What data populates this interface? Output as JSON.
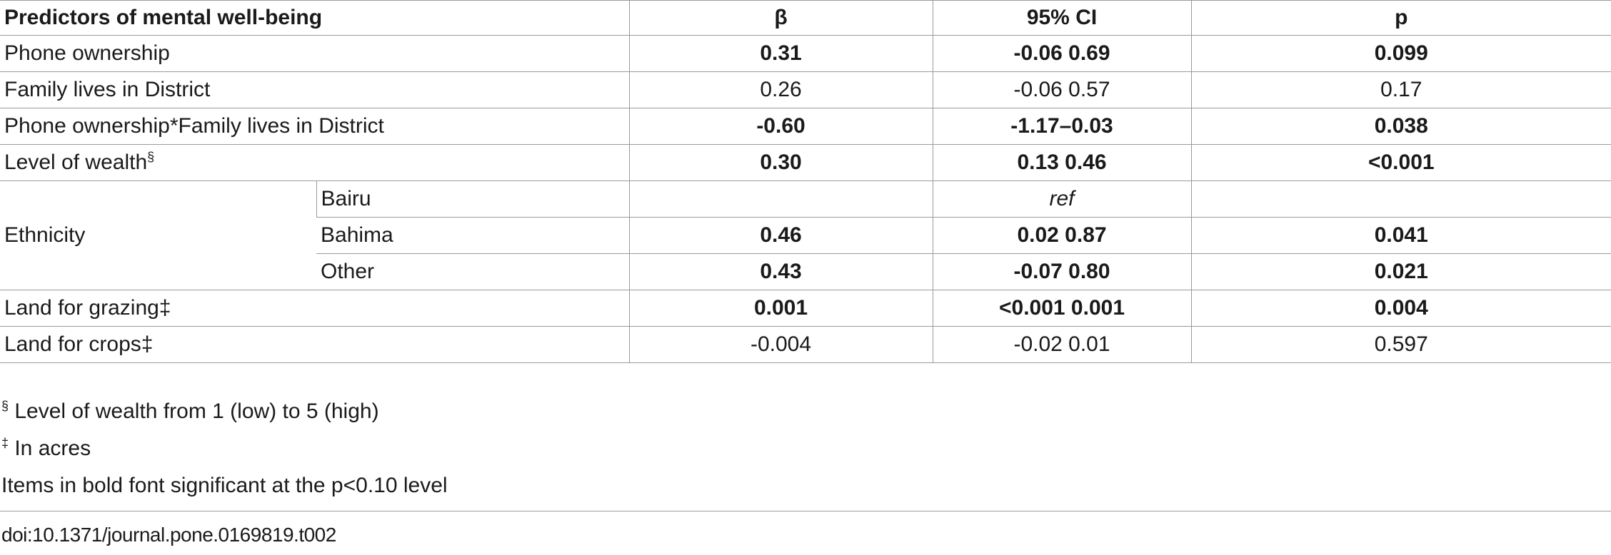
{
  "table": {
    "headers": [
      "Predictors of mental well-being",
      "β",
      "95% CI",
      "p"
    ],
    "rows": [
      {
        "predictor": "Phone ownership",
        "beta": "0.31",
        "ci": "-0.06 0.69",
        "p": "0.099"
      },
      {
        "predictor": "Family lives in District",
        "beta": "0.26",
        "ci": "-0.06 0.57",
        "p": "0.17"
      },
      {
        "predictor": "Phone ownership*Family lives in District",
        "beta": "-0.60",
        "ci": "-1.17–0.03",
        "p": "0.038"
      },
      {
        "predictor": "Level of wealth",
        "predictor_sup": "§",
        "beta": "0.30",
        "ci": "0.13 0.46",
        "p": "<0.001"
      },
      {
        "predictor": "Ethnicity",
        "subgroup": "Bairu",
        "beta": "",
        "ci": "ref",
        "p": ""
      },
      {
        "subgroup": "Bahima",
        "beta": "0.46",
        "ci": "0.02 0.87",
        "p": "0.041"
      },
      {
        "subgroup": "Other",
        "beta": "0.43",
        "ci": "-0.07 0.80",
        "p": "0.021"
      },
      {
        "predictor": "Land for grazing‡",
        "beta": "0.001",
        "ci": "<0.001 0.001",
        "p": "0.004"
      },
      {
        "predictor": "Land for crops‡",
        "beta": "-0.004",
        "ci": "-0.02 0.01",
        "p": "0.597"
      }
    ]
  },
  "footnotes": {
    "wealth_mark": "§",
    "wealth_text": " Level of wealth from 1 (low) to 5 (high)",
    "acres_mark": "‡",
    "acres_text": " In acres",
    "bold_note": "Items in bold font significant at the p<0.10 level"
  },
  "doi": "doi:10.1371/journal.pone.0169819.t002"
}
